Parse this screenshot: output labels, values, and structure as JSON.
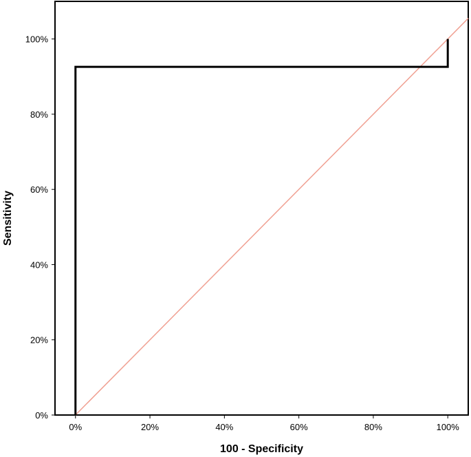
{
  "chart_data": {
    "type": "line",
    "xlabel": "100 - Specificity",
    "ylabel": "Sensitivity",
    "xlim": [
      -5.5,
      105.5
    ],
    "ylim": [
      0,
      110
    ],
    "x_ticks": [
      "0%",
      "20%",
      "40%",
      "60%",
      "80%",
      "100%"
    ],
    "y_ticks": [
      "0%",
      "20%",
      "40%",
      "60%",
      "80%",
      "100%"
    ],
    "x_tick_values": [
      0,
      20,
      40,
      60,
      80,
      100
    ],
    "y_tick_values": [
      0,
      20,
      40,
      60,
      80,
      100
    ],
    "grid": false,
    "series": [
      {
        "kind": "roc-curve",
        "color": "#000000",
        "x": [
          0,
          0,
          100,
          100
        ],
        "y": [
          0,
          92.6,
          92.6,
          100
        ]
      },
      {
        "kind": "reference-line",
        "color": "#f0a092",
        "x": [
          0,
          105.5
        ],
        "y": [
          0,
          105.5
        ]
      }
    ]
  }
}
